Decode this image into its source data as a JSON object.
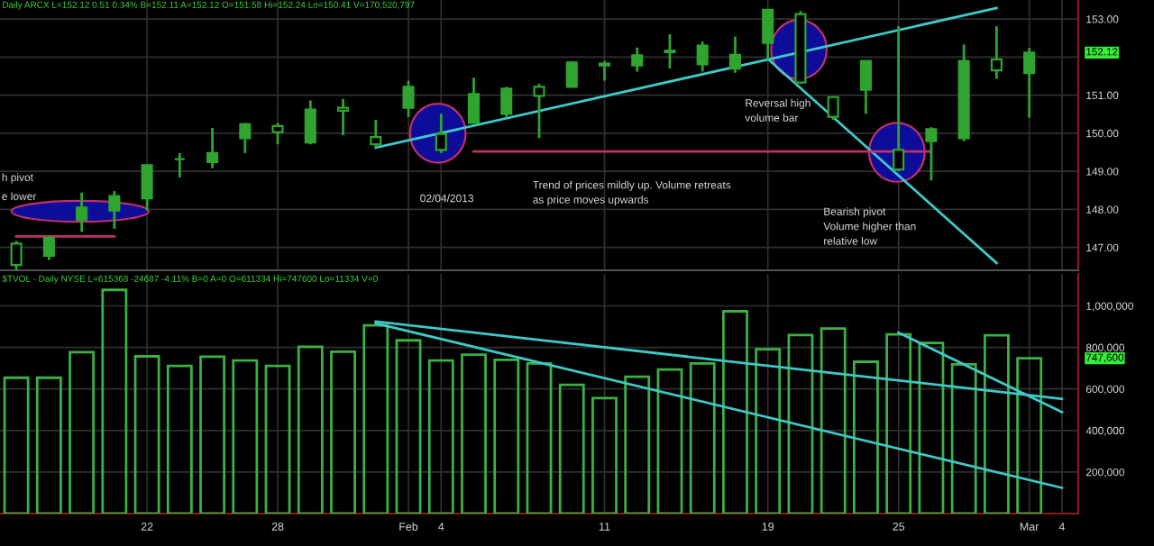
{
  "chart_data": [
    {
      "type": "candlestick",
      "title": "Daily ARCX L=152.12 0.51 0.34% B=152.11 A=152.12 O=151.58 Hi=152.24 Lo=150.41 V=170,520,797",
      "categories": [
        null,
        null,
        null,
        null,
        null,
        null,
        null,
        null,
        null,
        null,
        null,
        null,
        null,
        null,
        null,
        null,
        null,
        null,
        null,
        null,
        null,
        null,
        null,
        null,
        null,
        null,
        null,
        null,
        null,
        null,
        null,
        null,
        null
      ],
      "color": "#2fa52f",
      "ohlc": [
        [
          147.1,
          147.17,
          146.4,
          146.54
        ],
        [
          146.78,
          147.3,
          146.67,
          147.25
        ],
        [
          147.73,
          148.44,
          147.41,
          148.05
        ],
        [
          147.97,
          148.48,
          147.49,
          148.35
        ],
        [
          148.29,
          149.16,
          147.97,
          149.16
        ],
        [
          149.32,
          149.48,
          148.84,
          149.32
        ],
        [
          149.24,
          150.14,
          149.08,
          149.48
        ],
        [
          149.87,
          150.27,
          149.48,
          150.24
        ],
        [
          150.19,
          150.27,
          149.71,
          150.03
        ],
        [
          149.76,
          150.86,
          149.71,
          150.62
        ],
        [
          150.67,
          150.9,
          149.95,
          150.59
        ],
        [
          149.9,
          150.35,
          149.63,
          149.71
        ],
        [
          150.67,
          151.38,
          150.43,
          151.22
        ],
        [
          149.98,
          150.51,
          149.48,
          149.56
        ],
        [
          150.27,
          151.46,
          150.27,
          151.03
        ],
        [
          150.51,
          151.22,
          150.43,
          151.17
        ],
        [
          151.22,
          151.3,
          149.87,
          150.98
        ],
        [
          151.22,
          151.89,
          151.22,
          151.86
        ],
        [
          151.78,
          151.9,
          151.38,
          151.83
        ],
        [
          151.78,
          152.25,
          151.62,
          152.05
        ],
        [
          152.17,
          152.6,
          151.7,
          152.13
        ],
        [
          151.81,
          152.41,
          151.62,
          152.3
        ],
        [
          151.7,
          152.54,
          151.59,
          152.06
        ],
        [
          152.37,
          153.24,
          151.94,
          153.24
        ],
        [
          153.13,
          153.21,
          151.3,
          151.33
        ],
        [
          150.95,
          150.95,
          150.35,
          150.43
        ],
        [
          151.14,
          151.9,
          150.51,
          151.9
        ],
        [
          149.56,
          152.81,
          149.0,
          149.05
        ],
        [
          149.79,
          150.16,
          148.76,
          150.11
        ],
        [
          149.87,
          152.33,
          149.79,
          151.9
        ],
        [
          151.94,
          152.81,
          151.43,
          151.65
        ],
        [
          151.58,
          152.24,
          150.41,
          152.12
        ],
        null
      ],
      "series": [
        {
          "type": "line",
          "color": "#40c8c8",
          "values": [
            null,
            null,
            null,
            null,
            null,
            null,
            null,
            null,
            null,
            null,
            null,
            149.62,
            null,
            null,
            null,
            null,
            null,
            null,
            null,
            null,
            null,
            null,
            null,
            null,
            null,
            null,
            null,
            null,
            null,
            null,
            153.29,
            null,
            null
          ]
        },
        {
          "type": "line",
          "color": "#40c8c8",
          "values": [
            null,
            null,
            null,
            null,
            null,
            null,
            null,
            null,
            null,
            null,
            null,
            null,
            null,
            null,
            null,
            null,
            null,
            null,
            null,
            null,
            null,
            null,
            null,
            151.95,
            null,
            null,
            null,
            null,
            null,
            null,
            146.59,
            null,
            null
          ]
        },
        {
          "type": "line",
          "color": "#c0306a",
          "values": [
            null,
            null,
            null,
            null,
            null,
            null,
            null,
            null,
            null,
            null,
            null,
            null,
            null,
            null,
            149.52,
            null,
            null,
            null,
            null,
            null,
            null,
            null,
            null,
            null,
            null,
            null,
            null,
            null,
            149.52,
            null,
            null,
            null,
            null
          ]
        },
        {
          "type": "line",
          "color": "#c0306a",
          "values": [
            147.29,
            null,
            null,
            147.29,
            null,
            null,
            null,
            null,
            null,
            null,
            null,
            null,
            null,
            null,
            null,
            null,
            null,
            null,
            null,
            null,
            null,
            null,
            null,
            null,
            null,
            null,
            null,
            null,
            null,
            null,
            null,
            null,
            null
          ]
        }
      ],
      "ylim": [
        146.4,
        153.5
      ],
      "yticks": [
        {
          "value": 147,
          "label": "147.00"
        },
        {
          "value": 148,
          "label": "148.00"
        },
        {
          "value": 149,
          "label": "149.00"
        },
        {
          "value": 150,
          "label": "150.00"
        },
        {
          "value": 151,
          "label": "151.00"
        },
        {
          "value": 152,
          "label": null
        },
        {
          "value": 153,
          "label": "153.00"
        }
      ],
      "tick_labels": "y",
      "grid": true,
      "annotations": [
        "h pivot",
        "e lower",
        "02/04/2013",
        "Trend of prices mildly up. Volume retreats\nas price moves upwards",
        "Reversal high\nvolume bar",
        "Bearish pivot\nVolume higher than\nrelative low",
        "152.12"
      ]
    },
    {
      "type": "bar",
      "title": "$TVOL - Daily NYSE L=615368 -24687 -4.11% B=0 A=0 O=611334 Hi=747600 Lo=11334 V=0",
      "categories": [
        null,
        null,
        null,
        null,
        "22",
        null,
        null,
        null,
        "28",
        null,
        null,
        null,
        "Feb",
        "4",
        null,
        null,
        null,
        null,
        "11",
        null,
        null,
        null,
        null,
        "19",
        null,
        null,
        null,
        "25",
        null,
        null,
        null,
        "Mar",
        "4"
      ],
      "series": [
        {
          "type": "bar",
          "color": "#3cb043",
          "values": [
            654000,
            654000,
            777000,
            1077000,
            757000,
            711000,
            755000,
            737000,
            711000,
            803000,
            779000,
            906000,
            834000,
            737000,
            765000,
            740000,
            723000,
            620000,
            556000,
            659000,
            694000,
            723000,
            974000,
            791000,
            860000,
            891000,
            731000,
            863000,
            822000,
            719000,
            858000,
            747600,
            null
          ]
        },
        {
          "type": "line",
          "color": "#40c8c8",
          "values": [
            null,
            null,
            null,
            null,
            null,
            null,
            null,
            null,
            null,
            null,
            null,
            925000,
            null,
            null,
            null,
            null,
            null,
            null,
            null,
            null,
            null,
            null,
            null,
            null,
            null,
            null,
            null,
            null,
            null,
            null,
            null,
            null,
            552000
          ]
        },
        {
          "type": "line",
          "color": "#40c8c8",
          "values": [
            null,
            null,
            null,
            null,
            null,
            null,
            null,
            null,
            null,
            null,
            null,
            916000,
            null,
            null,
            null,
            null,
            null,
            null,
            null,
            null,
            null,
            null,
            null,
            null,
            null,
            null,
            null,
            null,
            null,
            null,
            null,
            null,
            124000
          ]
        },
        {
          "type": "line",
          "color": "#40c8c8",
          "values": [
            null,
            null,
            null,
            null,
            null,
            null,
            null,
            null,
            null,
            null,
            null,
            null,
            null,
            null,
            null,
            null,
            null,
            null,
            null,
            null,
            null,
            null,
            null,
            null,
            null,
            null,
            null,
            871000,
            null,
            null,
            null,
            null,
            488000
          ]
        }
      ],
      "ylim": [
        0,
        1154000
      ],
      "yticks": [
        {
          "value": 200000,
          "label": "200,000"
        },
        {
          "value": 400000,
          "label": "400,000"
        },
        {
          "value": 600000,
          "label": "600,000"
        },
        {
          "value": 800000,
          "label": "800,000"
        },
        {
          "value": 1000000,
          "label": "1,000,000"
        }
      ],
      "grid": true,
      "annotations": [
        "747,600"
      ]
    }
  ]
}
